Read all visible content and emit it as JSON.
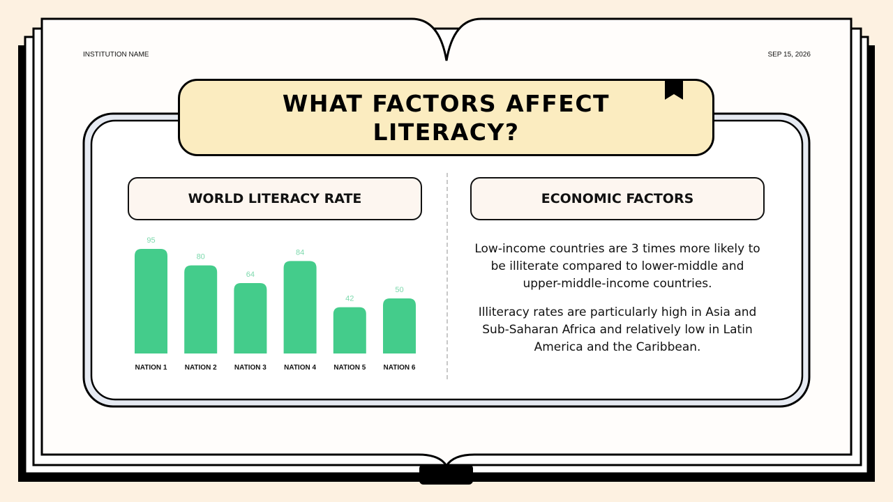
{
  "header": {
    "institution": "INSTITUTION NAME",
    "date": "SEP 15, 2026"
  },
  "title": "WHAT FACTORS AFFECT LITERACY?",
  "left_panel": {
    "heading": "WORLD LITERACY RATE"
  },
  "right_panel": {
    "heading": "ECONOMIC FACTORS",
    "paragraphs": [
      "Low-income countries are 3 times more likely to be illiterate compared to lower-middle and upper-middle-income countries.",
      "Illiteracy rates are particularly high in Asia and Sub-Saharan Africa and relatively low in Latin America and the Caribbean."
    ]
  },
  "colors": {
    "bar": "#44cc8b",
    "label": "#7dd9ad",
    "title_fill": "#fbecc0",
    "background": "#fdf1e1"
  },
  "icons": {
    "bookmark": "bookmark-icon"
  },
  "chart_data": {
    "type": "bar",
    "categories": [
      "NATION 1",
      "NATION 2",
      "NATION 3",
      "NATION 4",
      "NATION 5",
      "NATION 6"
    ],
    "values": [
      95,
      80,
      64,
      84,
      42,
      50
    ],
    "title": "",
    "xlabel": "",
    "ylabel": "",
    "ylim": [
      0,
      95
    ],
    "grid": false,
    "data_labels": true
  }
}
